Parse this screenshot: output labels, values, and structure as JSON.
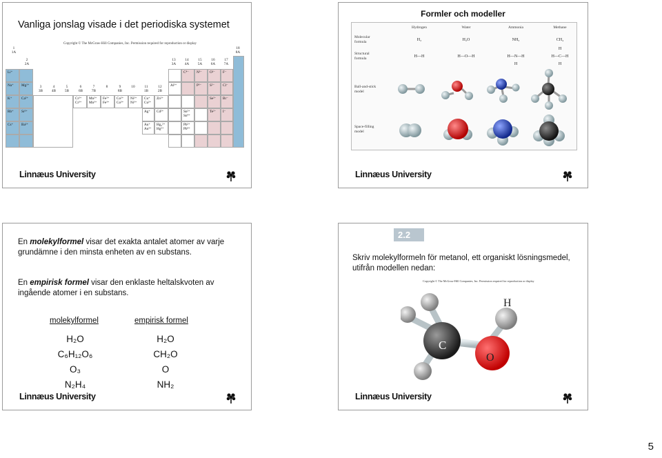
{
  "slide1": {
    "title": "Vanliga jonslag visade i det periodiska systemet",
    "copyright": "Copyright © The McGraw-Hill Companies, Inc. Permission required for reproduction or display",
    "group_labels": [
      {
        "num": "1",
        "sub": "1A"
      },
      {
        "num": "2",
        "sub": "2A"
      },
      {
        "num": "3",
        "sub": "3B"
      },
      {
        "num": "4",
        "sub": "4B"
      },
      {
        "num": "5",
        "sub": "5B"
      },
      {
        "num": "6",
        "sub": "6B"
      },
      {
        "num": "7",
        "sub": "7B"
      },
      {
        "num": "8",
        "sub": ""
      },
      {
        "num": "9",
        "sub": "8B"
      },
      {
        "num": "10",
        "sub": ""
      },
      {
        "num": "11",
        "sub": "1B"
      },
      {
        "num": "12",
        "sub": "2B"
      },
      {
        "num": "13",
        "sub": "3A"
      },
      {
        "num": "14",
        "sub": "4A"
      },
      {
        "num": "15",
        "sub": "5A"
      },
      {
        "num": "16",
        "sub": "6A"
      },
      {
        "num": "17",
        "sub": "7A"
      },
      {
        "num": "18",
        "sub": "8A"
      }
    ],
    "ions": {
      "li": "Li⁺",
      "na": "Na⁺",
      "mg": "Mg²⁺",
      "k": "K⁺",
      "ca": "Ca²⁺",
      "rb": "Rb⁺",
      "sr": "Sr²⁺",
      "cs": "Cs⁺",
      "ba": "Ba²⁺",
      "cr": "Cr²⁺\nCr³⁺",
      "mn": "Mn²⁺\nMn³⁺",
      "fe": "Fe²⁺\nFe³⁺",
      "co": "Co²⁺\nCo³⁺",
      "ni": "Ni²⁺\nNi³⁺",
      "cu": "Cu⁺\nCu²⁺",
      "zn": "Zn²⁺",
      "ag": "Ag⁺",
      "cd": "Cd²⁺",
      "au": "Au⁺\nAu³⁺",
      "hg": "Hg₂²⁺\nHg²⁺",
      "al": "Al³⁺",
      "sn": "Sn²⁺\nSn⁴⁺",
      "pb": "Pb²⁺\nPb⁴⁺",
      "c": "C⁴⁻",
      "n": "N³⁻",
      "o": "O²⁻",
      "f": "F⁻",
      "p": "P³⁻",
      "s": "S²⁻",
      "cl": "Cl⁻",
      "se": "Se²⁻",
      "br": "Br⁻",
      "te": "Te²⁻",
      "i": "I⁻"
    }
  },
  "slide2": {
    "title": "Formler och modeller",
    "columns": [
      "Hydrogen",
      "Water",
      "Ammonia",
      "Methane"
    ],
    "rows": {
      "molecular": "Molecular\nformula",
      "structural": "Structural\nformula",
      "ballstick": "Ball-and-stick\nmodel",
      "spacefill": "Space-filling\nmodel"
    },
    "molecular_formulas": [
      "H₂",
      "H₂O",
      "NH₃",
      "CH₄"
    ],
    "structural_formulas": [
      "H—H",
      "H—O—H",
      "H—N—H",
      "H—C—H"
    ],
    "structural_extra": {
      "nh3_below": "H",
      "ch4_above": "H",
      "ch4_below": "H"
    }
  },
  "slide3": {
    "para1_pre": "En ",
    "para1_term": "molekylformel",
    "para1_post": " visar det exakta antalet atomer av varje grundämne i den minsta enheten av en substans.",
    "para2_pre": "En ",
    "para2_term": "empirisk formel",
    "para2_post": " visar den enklaste heltalskvoten av ingående atomer i en substans.",
    "col1_head": "molekylformel",
    "col2_head": "empirisk formel",
    "molecular": [
      "H₂O",
      "C₆H₁₂O₆",
      "O₃",
      "N₂H₄"
    ],
    "empirical": [
      "H₂O",
      "CH₂O",
      "O",
      "NH₂"
    ]
  },
  "slide4": {
    "badge": "2.2",
    "text": "Skriv molekylformeln för metanol, ett organiskt lösningsmedel, utifrån modellen nedan:",
    "copyright": "Copyright © The McGraw-Hill Companies, Inc. Permission required for reproduction or display",
    "atom_labels": {
      "h": "H",
      "c": "C",
      "o": "O"
    }
  },
  "footer": {
    "logo": "Linnæus University"
  },
  "page_number": "5",
  "colors": {
    "metal_blue": "#8fbcd8",
    "nonmetal_pink": "#ead1d3",
    "badge": "#b9c6cf",
    "oxygen_red": "#e01010",
    "nitrogen_blue": "#1f3fb5",
    "carbon": "#333333",
    "hydrogen": "#b7c7cc"
  }
}
